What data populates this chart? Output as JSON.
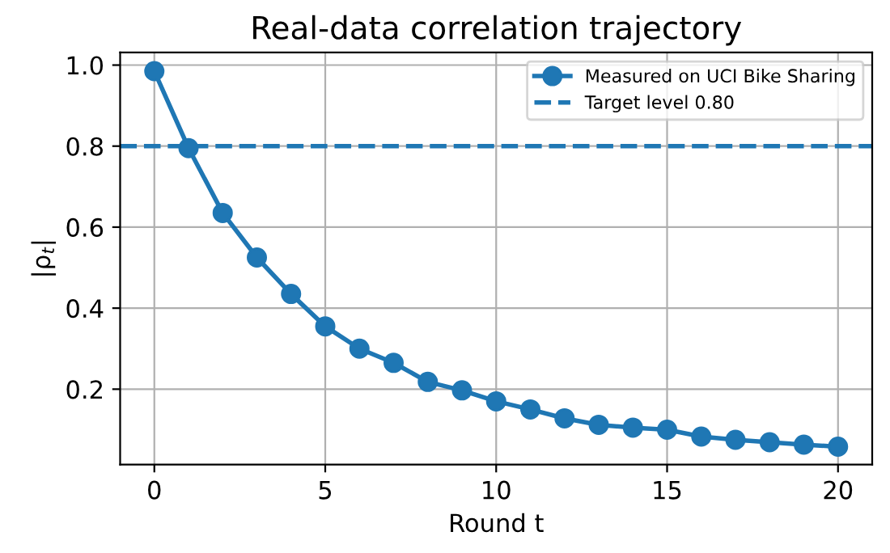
{
  "chart_data": {
    "type": "line",
    "title": "Real-data correlation trajectory",
    "xlabel": "Round t",
    "ylabel": "|ρ$_{t}$|",
    "x": [
      0,
      1,
      2,
      3,
      4,
      5,
      6,
      7,
      8,
      9,
      10,
      11,
      12,
      13,
      14,
      15,
      16,
      17,
      18,
      19,
      20
    ],
    "series": [
      {
        "name": "Measured on UCI Bike Sharing",
        "color": "#1f77b4",
        "values": [
          0.985,
          0.795,
          0.635,
          0.525,
          0.435,
          0.355,
          0.3,
          0.265,
          0.218,
          0.197,
          0.17,
          0.15,
          0.128,
          0.112,
          0.105,
          0.1,
          0.083,
          0.075,
          0.069,
          0.063,
          0.058
        ]
      }
    ],
    "ref_lines": [
      {
        "axis": "y",
        "value": 0.8,
        "label": "Target level 0.80",
        "color": "#1f77b4",
        "line_style": "dashed"
      }
    ],
    "xlim": [
      -1,
      21
    ],
    "ylim": [
      0.014,
      1.031
    ],
    "xticks": [
      0,
      5,
      10,
      15,
      20
    ],
    "yticks": [
      {
        "value": 0.2,
        "label": "0.2"
      },
      {
        "value": 0.4,
        "label": "0.4"
      },
      {
        "value": 0.6,
        "label": "0.6"
      },
      {
        "value": 0.8,
        "label": "0.8"
      },
      {
        "value": 1.0,
        "label": "1.0"
      }
    ],
    "grid": true,
    "legend": "top right",
    "marker": "circle",
    "line_style": "solid"
  }
}
